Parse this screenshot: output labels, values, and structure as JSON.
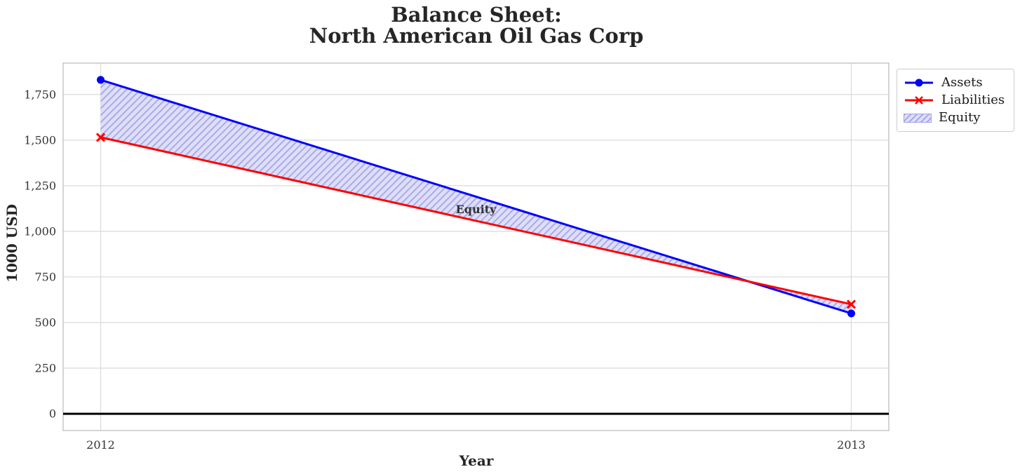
{
  "header": {
    "title_line1": "Balance Sheet:",
    "title_line2": "North American Oil Gas Corp"
  },
  "chart_data": {
    "type": "line",
    "title": "Balance Sheet: North American Oil Gas Corp",
    "xlabel": "Year",
    "ylabel": "1000 USD",
    "categories": [
      "2012",
      "2013"
    ],
    "series": [
      {
        "name": "Assets",
        "values": [
          1830,
          550
        ],
        "color": "#0000ff",
        "marker": "circle",
        "line_width": 3
      },
      {
        "name": "Liabilities",
        "values": [
          1515,
          600
        ],
        "color": "#ff0000",
        "marker": "x",
        "line_width": 3
      }
    ],
    "fill_between": {
      "label": "Equity",
      "between": [
        "Assets",
        "Liabilities"
      ],
      "fill_color": "#dedef6",
      "hatch_color": "#a2a2ec",
      "hatch_style": "diagonal"
    },
    "annotation": {
      "text": "Equity",
      "x_index": 0.5,
      "y_value": 1120,
      "color": "#0000ff"
    },
    "axes": {
      "ylim": [
        -92,
        1922
      ],
      "yticks": [
        0,
        250,
        500,
        750,
        1000,
        1250,
        1500,
        1750
      ],
      "ytick_labels": [
        "0",
        "250",
        "500",
        "750",
        "1,000",
        "1,250",
        "1,500",
        "1,750"
      ],
      "x_margin": 0.05,
      "grid": true,
      "zero_line": true
    },
    "legend": {
      "position": "outside-top-right",
      "entries": [
        "Assets",
        "Liabilities",
        "Equity"
      ]
    }
  },
  "colors": {
    "background": "#ffffff",
    "grid": "#d9d9d9",
    "spine": "#c3c3c3",
    "zero_line": "#000000",
    "tick_text": "#333333",
    "legend_border": "#cccccc"
  }
}
